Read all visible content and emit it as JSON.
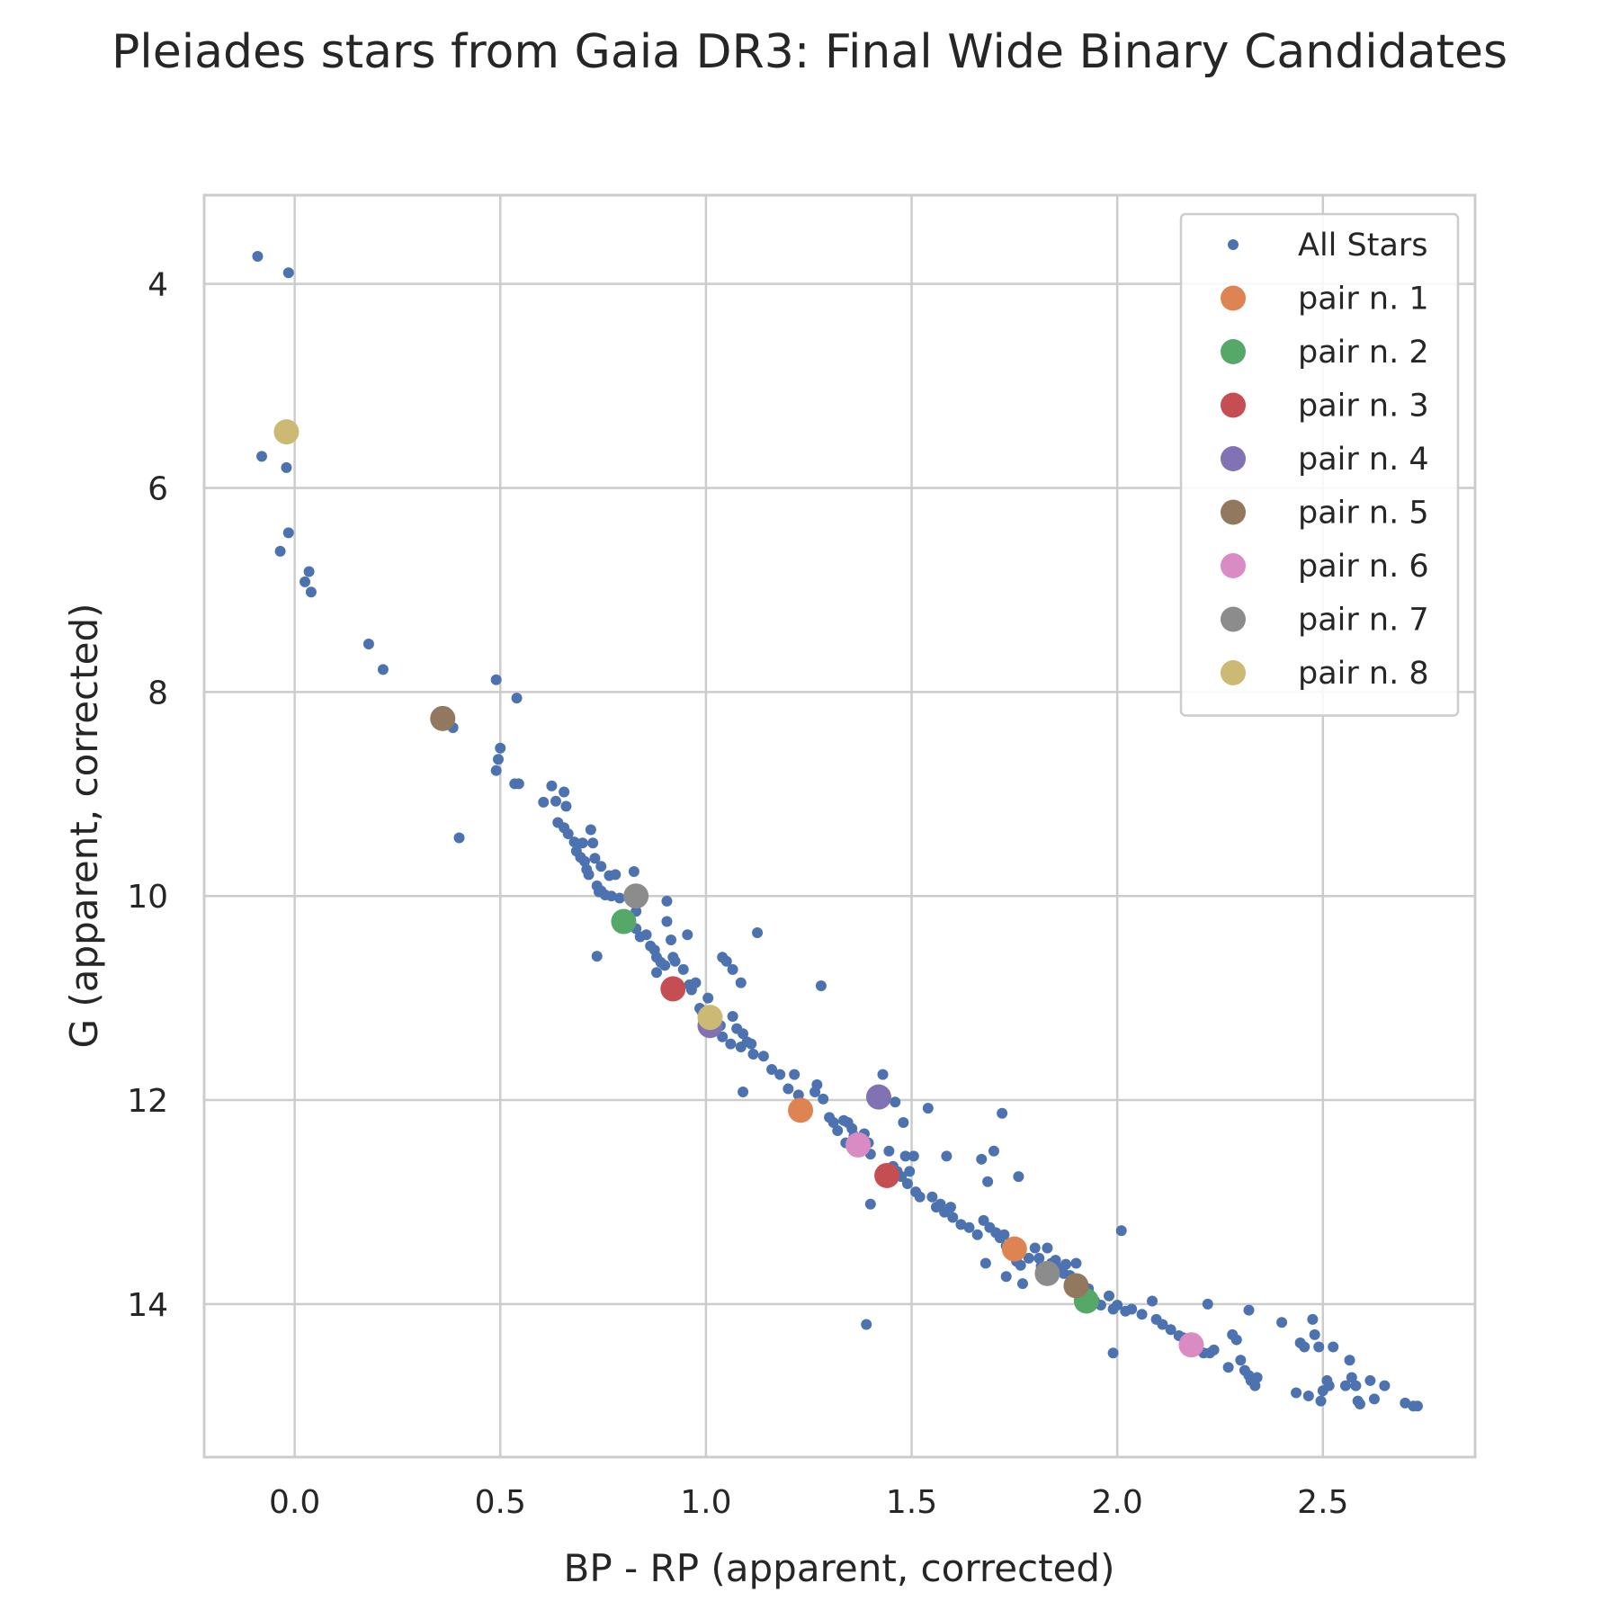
{
  "chart_data": {
    "type": "scatter",
    "title": "Pleiades stars from Gaia DR3: Final Wide Binary Candidates",
    "xlabel": "BP - RP (apparent, corrected)",
    "ylabel": "G (apparent, corrected)",
    "xlim": [
      -0.22,
      2.87
    ],
    "ylim": [
      15.5,
      3.13
    ],
    "y_inverted": true,
    "grid": true,
    "legend_position": "upper right",
    "x_ticks": [
      0.0,
      0.5,
      1.0,
      1.5,
      2.0,
      2.5
    ],
    "x_tick_labels": [
      "0.0",
      "0.5",
      "1.0",
      "1.5",
      "2.0",
      "2.5"
    ],
    "y_ticks": [
      4,
      6,
      8,
      10,
      12,
      14
    ],
    "y_tick_labels": [
      "4",
      "6",
      "8",
      "10",
      "12",
      "14"
    ],
    "series": [
      {
        "name": "All Stars",
        "color": "#4c72b0",
        "marker": "small-dot",
        "points": [
          [
            -0.09,
            3.73
          ],
          [
            -0.015,
            3.89
          ],
          [
            -0.08,
            5.69
          ],
          [
            -0.02,
            5.8
          ],
          [
            -0.015,
            6.44
          ],
          [
            -0.035,
            6.62
          ],
          [
            0.025,
            6.92
          ],
          [
            0.035,
            6.82
          ],
          [
            0.04,
            7.02
          ],
          [
            0.18,
            7.53
          ],
          [
            0.215,
            7.78
          ],
          [
            0.385,
            8.35
          ],
          [
            0.4,
            9.43
          ],
          [
            0.49,
            7.88
          ],
          [
            0.54,
            8.06
          ],
          [
            0.5,
            8.55
          ],
          [
            0.495,
            8.66
          ],
          [
            0.49,
            8.77
          ],
          [
            0.535,
            8.9
          ],
          [
            0.545,
            8.9
          ],
          [
            0.605,
            9.08
          ],
          [
            0.625,
            8.92
          ],
          [
            0.635,
            9.07
          ],
          [
            0.655,
            8.98
          ],
          [
            0.66,
            9.12
          ],
          [
            0.64,
            9.28
          ],
          [
            0.655,
            9.33
          ],
          [
            0.665,
            9.39
          ],
          [
            0.68,
            9.47
          ],
          [
            0.7,
            9.48
          ],
          [
            0.72,
            9.35
          ],
          [
            0.725,
            9.48
          ],
          [
            0.685,
            9.56
          ],
          [
            0.695,
            9.62
          ],
          [
            0.705,
            9.66
          ],
          [
            0.71,
            9.74
          ],
          [
            0.715,
            9.79
          ],
          [
            0.735,
            9.9
          ],
          [
            0.74,
            9.96
          ],
          [
            0.745,
            9.71
          ],
          [
            0.765,
            9.8
          ],
          [
            0.78,
            9.79
          ],
          [
            0.73,
            9.63
          ],
          [
            0.745,
            9.95
          ],
          [
            0.755,
            9.99
          ],
          [
            0.77,
            10.0
          ],
          [
            0.79,
            10.02
          ],
          [
            0.825,
            9.76
          ],
          [
            0.83,
            10.15
          ],
          [
            0.83,
            10.32
          ],
          [
            0.84,
            10.4
          ],
          [
            0.855,
            10.38
          ],
          [
            0.865,
            10.49
          ],
          [
            0.875,
            10.53
          ],
          [
            0.88,
            10.6
          ],
          [
            0.89,
            10.65
          ],
          [
            0.9,
            10.68
          ],
          [
            0.88,
            10.75
          ],
          [
            0.905,
            10.25
          ],
          [
            0.905,
            10.05
          ],
          [
            0.915,
            10.43
          ],
          [
            0.92,
            10.6
          ],
          [
            0.925,
            10.64
          ],
          [
            0.945,
            10.72
          ],
          [
            0.955,
            10.38
          ],
          [
            0.96,
            10.87
          ],
          [
            0.965,
            10.92
          ],
          [
            0.975,
            10.85
          ],
          [
            0.985,
            11.1
          ],
          [
            0.99,
            11.13
          ],
          [
            1.005,
            11.0
          ],
          [
            1.01,
            11.16
          ],
          [
            1.02,
            11.22
          ],
          [
            1.035,
            11.27
          ],
          [
            1.04,
            10.6
          ],
          [
            1.05,
            10.64
          ],
          [
            1.065,
            10.72
          ],
          [
            1.085,
            10.85
          ],
          [
            1.04,
            11.38
          ],
          [
            1.06,
            11.45
          ],
          [
            1.065,
            11.18
          ],
          [
            1.075,
            11.3
          ],
          [
            1.085,
            11.48
          ],
          [
            1.09,
            11.35
          ],
          [
            1.1,
            11.43
          ],
          [
            1.11,
            11.45
          ],
          [
            1.115,
            11.55
          ],
          [
            1.125,
            10.36
          ],
          [
            1.14,
            11.57
          ],
          [
            1.16,
            11.7
          ],
          [
            1.18,
            11.75
          ],
          [
            1.2,
            11.89
          ],
          [
            1.215,
            11.75
          ],
          [
            1.09,
            11.92
          ],
          [
            1.225,
            11.95
          ],
          [
            1.28,
            10.88
          ],
          [
            1.265,
            11.92
          ],
          [
            1.27,
            11.85
          ],
          [
            1.285,
            11.99
          ],
          [
            1.3,
            12.17
          ],
          [
            1.31,
            12.22
          ],
          [
            1.32,
            12.3
          ],
          [
            1.335,
            12.2
          ],
          [
            1.345,
            12.22
          ],
          [
            1.355,
            12.28
          ],
          [
            1.36,
            12.35
          ],
          [
            1.34,
            12.42
          ],
          [
            1.385,
            12.33
          ],
          [
            1.395,
            12.42
          ],
          [
            1.4,
            12.53
          ],
          [
            1.43,
            11.75
          ],
          [
            1.445,
            12.5
          ],
          [
            1.46,
            12.02
          ],
          [
            1.455,
            12.65
          ],
          [
            1.465,
            12.7
          ],
          [
            1.475,
            12.75
          ],
          [
            1.485,
            12.55
          ],
          [
            1.495,
            12.7
          ],
          [
            1.49,
            12.82
          ],
          [
            1.505,
            12.55
          ],
          [
            1.51,
            12.9
          ],
          [
            1.52,
            12.95
          ],
          [
            1.48,
            12.22
          ],
          [
            1.54,
            12.08
          ],
          [
            1.55,
            12.95
          ],
          [
            1.56,
            13.05
          ],
          [
            1.57,
            13.02
          ],
          [
            1.58,
            13.1
          ],
          [
            1.585,
            12.55
          ],
          [
            1.595,
            13.05
          ],
          [
            1.6,
            13.15
          ],
          [
            1.62,
            13.22
          ],
          [
            1.64,
            13.25
          ],
          [
            1.66,
            13.32
          ],
          [
            1.67,
            12.58
          ],
          [
            1.685,
            12.8
          ],
          [
            1.7,
            12.5
          ],
          [
            1.72,
            12.13
          ],
          [
            1.675,
            13.18
          ],
          [
            1.69,
            13.25
          ],
          [
            1.705,
            13.3
          ],
          [
            1.715,
            13.35
          ],
          [
            1.725,
            13.32
          ],
          [
            1.73,
            13.43
          ],
          [
            1.68,
            13.6
          ],
          [
            1.76,
            12.75
          ],
          [
            1.75,
            13.5
          ],
          [
            1.755,
            13.58
          ],
          [
            1.765,
            13.62
          ],
          [
            1.77,
            13.8
          ],
          [
            1.73,
            13.73
          ],
          [
            1.785,
            13.55
          ],
          [
            1.8,
            13.45
          ],
          [
            1.81,
            13.55
          ],
          [
            1.815,
            13.63
          ],
          [
            1.83,
            13.45
          ],
          [
            1.84,
            13.6
          ],
          [
            1.85,
            13.57
          ],
          [
            1.86,
            13.65
          ],
          [
            1.87,
            13.7
          ],
          [
            1.875,
            13.61
          ],
          [
            1.885,
            13.72
          ],
          [
            1.9,
            13.6
          ],
          [
            1.91,
            13.78
          ],
          [
            1.92,
            13.9
          ],
          [
            1.93,
            13.85
          ],
          [
            1.945,
            13.97
          ],
          [
            1.96,
            14.01
          ],
          [
            1.98,
            13.92
          ],
          [
            1.99,
            14.05
          ],
          [
            2.0,
            14.01
          ],
          [
            2.01,
            13.28
          ],
          [
            2.02,
            14.07
          ],
          [
            2.035,
            14.05
          ],
          [
            2.06,
            14.1
          ],
          [
            2.085,
            13.97
          ],
          [
            2.095,
            14.15
          ],
          [
            2.11,
            14.2
          ],
          [
            2.13,
            14.25
          ],
          [
            2.15,
            14.31
          ],
          [
            2.16,
            14.33
          ],
          [
            2.175,
            14.38
          ],
          [
            2.195,
            14.43
          ],
          [
            2.21,
            14.48
          ],
          [
            2.22,
            14.0
          ],
          [
            2.225,
            14.48
          ],
          [
            2.235,
            14.45
          ],
          [
            2.27,
            14.62
          ],
          [
            2.28,
            14.3
          ],
          [
            2.29,
            14.35
          ],
          [
            2.3,
            14.55
          ],
          [
            2.31,
            14.65
          ],
          [
            2.32,
            14.7
          ],
          [
            2.32,
            14.06
          ],
          [
            2.325,
            14.75
          ],
          [
            2.335,
            14.8
          ],
          [
            2.34,
            14.72
          ],
          [
            2.4,
            14.18
          ],
          [
            2.435,
            14.87
          ],
          [
            2.445,
            14.38
          ],
          [
            2.455,
            14.42
          ],
          [
            2.465,
            14.9
          ],
          [
            2.475,
            14.15
          ],
          [
            2.48,
            14.3
          ],
          [
            2.49,
            14.42
          ],
          [
            2.495,
            14.95
          ],
          [
            2.5,
            14.85
          ],
          [
            2.51,
            14.75
          ],
          [
            2.515,
            14.8
          ],
          [
            2.525,
            14.42
          ],
          [
            2.555,
            14.8
          ],
          [
            2.565,
            14.55
          ],
          [
            2.57,
            14.72
          ],
          [
            2.58,
            14.8
          ],
          [
            2.585,
            14.95
          ],
          [
            2.59,
            14.98
          ],
          [
            2.615,
            14.75
          ],
          [
            2.625,
            14.93
          ],
          [
            2.65,
            14.8
          ],
          [
            2.7,
            14.97
          ],
          [
            2.72,
            15.0
          ],
          [
            2.73,
            15.0
          ],
          [
            1.39,
            14.2
          ],
          [
            1.99,
            14.48
          ],
          [
            1.4,
            13.02
          ],
          [
            0.735,
            10.59
          ]
        ]
      },
      {
        "name": "pair n. 1",
        "color": "#dd8452",
        "marker": "large-dot",
        "points": [
          [
            1.23,
            12.1
          ],
          [
            1.75,
            13.46
          ]
        ]
      },
      {
        "name": "pair n. 2",
        "color": "#55a868",
        "marker": "large-dot",
        "points": [
          [
            0.8,
            10.25
          ],
          [
            1.925,
            13.97
          ]
        ]
      },
      {
        "name": "pair n. 3",
        "color": "#c44e52",
        "marker": "large-dot",
        "points": [
          [
            0.92,
            10.91
          ],
          [
            1.44,
            12.74
          ]
        ]
      },
      {
        "name": "pair n. 4",
        "color": "#8172b3",
        "marker": "large-dot",
        "points": [
          [
            1.01,
            11.27
          ],
          [
            1.42,
            11.97
          ]
        ]
      },
      {
        "name": "pair n. 5",
        "color": "#937860",
        "marker": "large-dot",
        "points": [
          [
            0.36,
            8.26
          ],
          [
            1.9,
            13.82
          ]
        ]
      },
      {
        "name": "pair n. 6",
        "color": "#da8bc3",
        "marker": "large-dot",
        "points": [
          [
            1.37,
            12.44
          ],
          [
            2.18,
            14.4
          ]
        ]
      },
      {
        "name": "pair n. 7",
        "color": "#8c8c8c",
        "marker": "large-dot",
        "points": [
          [
            0.83,
            10.0
          ],
          [
            1.83,
            13.7
          ]
        ]
      },
      {
        "name": "pair n. 8",
        "color": "#ccb974",
        "marker": "large-dot",
        "points": [
          [
            -0.02,
            5.45
          ],
          [
            1.01,
            11.19
          ]
        ]
      }
    ]
  }
}
